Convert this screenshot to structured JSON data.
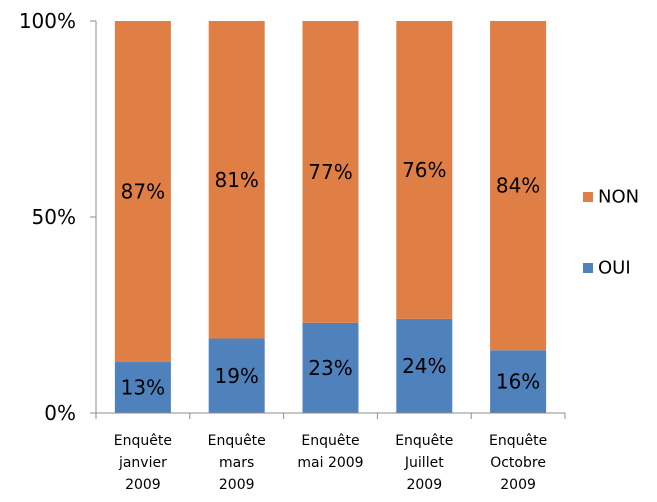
{
  "chart_data": {
    "type": "bar",
    "stacked": true,
    "percent_stacked": true,
    "categories": [
      [
        "Enquête",
        "janvier",
        "2009"
      ],
      [
        "Enquête",
        "mars",
        "2009"
      ],
      [
        "Enquête",
        "mai 2009"
      ],
      [
        "Enquête",
        "Juillet",
        "2009"
      ],
      [
        "Enquête",
        "Octobre",
        "2009"
      ]
    ],
    "series": [
      {
        "name": "OUI",
        "values": [
          13,
          19,
          23,
          24,
          16
        ],
        "labels": [
          "13%",
          "19%",
          "23%",
          "24%",
          "16%"
        ],
        "color": "#4f81bd"
      },
      {
        "name": "NON",
        "values": [
          87,
          81,
          77,
          76,
          84
        ],
        "labels": [
          "87%",
          "81%",
          "77%",
          "76%",
          "84%"
        ],
        "color": "#e07f45"
      }
    ],
    "yticks": [
      "0%",
      "50%",
      "100%"
    ],
    "ytick_values": [
      0,
      50,
      100
    ],
    "ylim": [
      0,
      100
    ],
    "grid": false,
    "legend": {
      "placement": "right",
      "order": [
        "NON",
        "OUI"
      ]
    }
  }
}
